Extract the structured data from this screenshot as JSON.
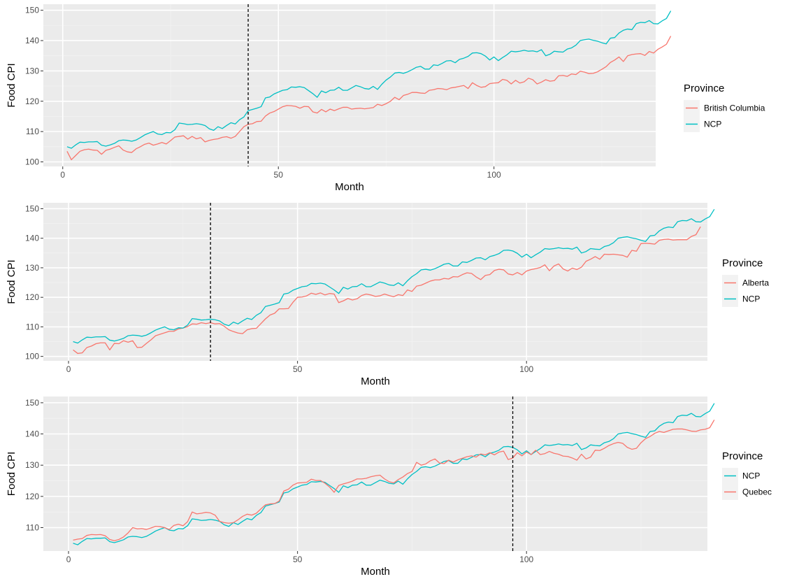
{
  "colors": {
    "panel_bg": "#EBEBEB",
    "grid_major": "#FFFFFF",
    "grid_minor": "#F2F2F2",
    "ncp": "#00BFC4",
    "province": "#F8766D",
    "vline": "#000000",
    "tick_text": "#4D4D4D"
  },
  "chart_data": [
    {
      "type": "line",
      "xlabel": "Month",
      "ylabel": "Food CPI",
      "x_ticks": [
        0,
        50,
        100
      ],
      "y_ticks": [
        100,
        110,
        120,
        130,
        140,
        150
      ],
      "xlim": [
        -4.5,
        137.5
      ],
      "ylim": [
        98.5,
        152
      ],
      "vline": 43,
      "legend_title": "Province",
      "legend_position": "right",
      "series": [
        {
          "name": "British Columbia",
          "color": "#F8766D",
          "start": 1,
          "values": [
            103.5,
            100.7,
            102.1,
            103.5,
            104.0,
            104.2,
            103.9,
            103.8,
            102.5,
            103.8,
            104.2,
            104.8,
            105.3,
            103.9,
            103.3,
            103.1,
            104.3,
            105.0,
            105.8,
            106.2,
            105.5,
            105.9,
            106.4,
            105.9,
            107.0,
            108.2,
            108.4,
            108.6,
            107.5,
            108.4,
            107.6,
            108.0,
            106.6,
            107.1,
            107.4,
            107.6,
            108.1,
            108.3,
            107.8,
            108.4,
            110.0,
            111.6,
            112.4,
            112.6,
            113.3,
            113.4,
            115.1,
            116.1,
            116.6,
            117.4,
            118.2,
            118.6,
            118.5,
            118.3,
            117.7,
            118.3,
            118.2,
            116.5,
            116.1,
            117.3,
            116.5,
            117.4,
            116.9,
            117.5,
            118.0,
            118.0,
            117.4,
            117.6,
            117.7,
            117.5,
            117.7,
            117.9,
            119.0,
            118.6,
            119.2,
            120.0,
            121.3,
            120.5,
            121.9,
            122.3,
            122.9,
            122.9,
            122.7,
            122.6,
            123.6,
            123.8,
            124.2,
            124.1,
            123.8,
            124.4,
            124.6,
            124.9,
            125.2,
            124.2,
            126.1,
            125.2,
            124.6,
            124.8,
            125.8,
            126.0,
            126.1,
            127.2,
            126.9,
            125.7,
            126.9,
            126.0,
            126.4,
            127.6,
            127.1,
            125.7,
            126.3,
            127.1,
            126.6,
            126.8,
            128.4,
            128.5,
            128.2,
            129.0,
            128.8,
            129.9,
            129.6,
            129.1,
            129.2,
            129.7,
            130.5,
            131.4,
            132.8,
            133.6,
            134.6,
            133.1,
            135.0,
            135.4,
            135.6,
            135.7,
            135.1,
            136.4,
            135.9,
            137.1,
            137.9,
            138.8,
            141.5
          ]
        },
        {
          "name": "NCP",
          "color": "#00BFC4",
          "start": 1,
          "values": [
            105.0,
            104.5,
            105.6,
            106.5,
            106.4,
            106.6,
            106.6,
            106.7,
            105.5,
            105.2,
            105.6,
            106.1,
            107.0,
            107.2,
            107.1,
            106.8,
            107.2,
            108.0,
            108.9,
            109.5,
            110.0,
            109.2,
            109.0,
            109.7,
            109.6,
            110.6,
            112.8,
            112.6,
            112.3,
            112.4,
            112.6,
            112.4,
            112.0,
            110.9,
            110.4,
            111.6,
            111.0,
            112.0,
            112.9,
            112.5,
            113.9,
            114.8,
            116.9,
            117.3,
            117.7,
            118.2,
            121.1,
            121.4,
            122.4,
            123.0,
            123.6,
            123.8,
            124.7,
            124.6,
            124.8,
            124.5,
            123.5,
            122.5,
            121.3,
            123.4,
            122.8,
            123.6,
            123.7,
            124.6,
            123.6,
            123.6,
            124.4,
            125.2,
            124.8,
            124.2,
            124.0,
            124.9,
            123.9,
            125.6,
            127.0,
            128.0,
            129.3,
            129.5,
            129.2,
            129.7,
            130.4,
            131.2,
            131.5,
            130.6,
            130.6,
            132.0,
            131.8,
            132.5,
            133.3,
            133.4,
            132.7,
            133.8,
            134.2,
            134.8,
            135.9,
            136.0,
            135.7,
            134.9,
            133.6,
            134.6,
            133.4,
            134.4,
            135.3,
            136.5,
            136.3,
            136.5,
            136.8,
            136.5,
            136.6,
            136.3,
            137.0,
            135.0,
            135.5,
            136.5,
            136.3,
            136.2,
            137.2,
            137.6,
            138.5,
            140.0,
            140.3,
            140.5,
            140.1,
            139.8,
            139.3,
            138.9,
            140.8,
            141.0,
            142.5,
            143.4,
            143.8,
            143.6,
            145.6,
            146.0,
            145.9,
            146.6,
            145.6,
            145.5,
            146.5,
            147.3,
            149.8
          ]
        }
      ]
    },
    {
      "type": "line",
      "xlabel": "Month",
      "ylabel": "Food CPI",
      "x_ticks": [
        0,
        50,
        100
      ],
      "y_ticks": [
        100,
        110,
        120,
        130,
        140,
        150
      ],
      "xlim": [
        -5.5,
        139.5
      ],
      "ylim": [
        98.5,
        152
      ],
      "vline": 31,
      "legend_title": "Province",
      "legend_position": "right",
      "series": [
        {
          "name": "Alberta",
          "color": "#F8766D",
          "start": 1,
          "values": [
            102.2,
            101.0,
            101.2,
            103.0,
            103.5,
            104.3,
            104.6,
            104.6,
            102.2,
            104.4,
            104.3,
            105.3,
            104.8,
            105.3,
            103.0,
            103.1,
            104.4,
            105.6,
            107.0,
            107.5,
            108.0,
            108.5,
            108.5,
            109.3,
            109.6,
            110.1,
            111.0,
            110.9,
            111.4,
            111.1,
            111.4,
            111.0,
            111.1,
            110.2,
            109.0,
            108.4,
            107.9,
            107.7,
            109.0,
            109.4,
            109.5,
            111.1,
            112.7,
            114.0,
            114.6,
            116.1,
            116.1,
            116.2,
            118.3,
            120.0,
            120.1,
            120.5,
            121.4,
            121.0,
            121.5,
            120.8,
            121.3,
            121.1,
            118.2,
            118.8,
            119.6,
            119.1,
            119.5,
            120.6,
            121.1,
            120.8,
            120.3,
            120.5,
            121.1,
            120.6,
            120.2,
            120.9,
            120.6,
            122.5,
            122.0,
            123.8,
            124.1,
            124.8,
            125.5,
            125.9,
            125.9,
            126.4,
            126.2,
            127.0,
            126.9,
            127.7,
            128.3,
            128.1,
            126.9,
            126.0,
            127.4,
            127.7,
            129.1,
            129.5,
            129.3,
            127.9,
            127.6,
            128.4,
            127.6,
            128.9,
            129.4,
            129.7,
            130.1,
            131.0,
            129.0,
            130.6,
            131.3,
            129.6,
            128.9,
            129.9,
            129.4,
            130.2,
            132.2,
            132.9,
            133.8,
            132.9,
            134.6,
            134.5,
            134.6,
            134.4,
            134.2,
            133.6,
            135.9,
            135.6,
            138.2,
            138.3,
            138.2,
            138.0,
            139.3,
            139.6,
            139.7,
            139.4,
            139.5,
            139.5,
            139.5,
            140.6,
            141.2,
            143.9
          ]
        },
        {
          "name": "NCP",
          "color": "#00BFC4",
          "start": 1,
          "values": [
            105.0,
            104.5,
            105.6,
            106.5,
            106.4,
            106.6,
            106.6,
            106.7,
            105.5,
            105.2,
            105.6,
            106.1,
            107.0,
            107.2,
            107.1,
            106.8,
            107.2,
            108.0,
            108.9,
            109.5,
            110.0,
            109.2,
            109.0,
            109.7,
            109.6,
            110.6,
            112.8,
            112.6,
            112.3,
            112.4,
            112.6,
            112.4,
            112.0,
            110.9,
            110.4,
            111.6,
            111.0,
            112.0,
            112.9,
            112.5,
            113.9,
            114.8,
            116.9,
            117.3,
            117.7,
            118.2,
            121.1,
            121.4,
            122.4,
            123.0,
            123.6,
            123.8,
            124.7,
            124.6,
            124.8,
            124.5,
            123.5,
            122.5,
            121.3,
            123.4,
            122.8,
            123.6,
            123.7,
            124.6,
            123.6,
            123.6,
            124.4,
            125.2,
            124.8,
            124.2,
            124.0,
            124.9,
            123.9,
            125.6,
            127.0,
            128.0,
            129.3,
            129.5,
            129.2,
            129.7,
            130.4,
            131.2,
            131.5,
            130.6,
            130.6,
            132.0,
            131.8,
            132.5,
            133.3,
            133.4,
            132.7,
            133.8,
            134.2,
            134.8,
            135.9,
            136.0,
            135.7,
            134.9,
            133.6,
            134.6,
            133.4,
            134.4,
            135.3,
            136.5,
            136.3,
            136.5,
            136.8,
            136.5,
            136.6,
            136.3,
            137.0,
            135.0,
            135.5,
            136.5,
            136.3,
            136.2,
            137.2,
            137.6,
            138.5,
            140.0,
            140.3,
            140.5,
            140.1,
            139.8,
            139.3,
            138.9,
            140.8,
            141.0,
            142.5,
            143.4,
            143.8,
            143.6,
            145.6,
            146.0,
            145.9,
            146.6,
            145.6,
            145.5,
            146.5,
            147.3,
            149.8
          ]
        }
      ]
    },
    {
      "type": "line",
      "xlabel": "Month",
      "ylabel": "Food CPI",
      "x_ticks": [
        0,
        50,
        100
      ],
      "y_ticks": [
        110,
        120,
        130,
        140,
        150
      ],
      "xlim": [
        -5.5,
        139.5
      ],
      "ylim": [
        102.5,
        152
      ],
      "vline": 97,
      "legend_title": "Province",
      "legend_position": "right",
      "series": [
        {
          "name": "NCP",
          "color": "#00BFC4",
          "start": 1,
          "values": [
            105.0,
            104.5,
            105.6,
            106.5,
            106.4,
            106.6,
            106.6,
            106.7,
            105.5,
            105.2,
            105.6,
            106.1,
            107.0,
            107.2,
            107.1,
            106.8,
            107.2,
            108.0,
            108.9,
            109.5,
            110.0,
            109.2,
            109.0,
            109.7,
            109.6,
            110.6,
            112.8,
            112.6,
            112.3,
            112.4,
            112.6,
            112.4,
            112.0,
            110.9,
            110.4,
            111.6,
            111.0,
            112.0,
            112.9,
            112.5,
            113.9,
            114.8,
            116.9,
            117.3,
            117.7,
            118.2,
            121.1,
            121.4,
            122.4,
            123.0,
            123.6,
            123.8,
            124.7,
            124.6,
            124.8,
            124.5,
            123.5,
            122.5,
            121.3,
            123.4,
            122.8,
            123.6,
            123.7,
            124.6,
            123.6,
            123.6,
            124.4,
            125.2,
            124.8,
            124.2,
            124.0,
            124.9,
            123.9,
            125.6,
            127.0,
            128.0,
            129.3,
            129.5,
            129.2,
            129.7,
            130.4,
            131.2,
            131.5,
            130.6,
            130.6,
            132.0,
            131.8,
            132.5,
            133.3,
            133.4,
            132.7,
            133.8,
            134.2,
            134.8,
            135.9,
            136.0,
            135.7,
            134.9,
            133.6,
            134.6,
            133.4,
            134.4,
            135.3,
            136.5,
            136.3,
            136.5,
            136.8,
            136.5,
            136.6,
            136.3,
            137.0,
            135.0,
            135.5,
            136.5,
            136.3,
            136.2,
            137.2,
            137.6,
            138.5,
            140.0,
            140.3,
            140.5,
            140.1,
            139.8,
            139.3,
            138.9,
            140.8,
            141.0,
            142.5,
            143.4,
            143.8,
            143.6,
            145.6,
            146.0,
            145.9,
            146.6,
            145.6,
            145.5,
            146.5,
            147.3,
            149.8
          ]
        },
        {
          "name": "Quebec",
          "color": "#F8766D",
          "start": 1,
          "values": [
            106.0,
            106.3,
            106.5,
            107.5,
            107.8,
            107.7,
            107.8,
            107.4,
            106.2,
            105.8,
            106.2,
            107.0,
            108.3,
            110.0,
            109.6,
            109.7,
            109.4,
            109.9,
            110.4,
            110.3,
            110.0,
            109.4,
            110.7,
            111.1,
            110.6,
            111.9,
            115.0,
            114.4,
            114.6,
            114.9,
            114.7,
            114.0,
            112.0,
            111.6,
            111.4,
            111.6,
            112.5,
            113.6,
            114.3,
            114.0,
            114.6,
            116.0,
            117.3,
            117.6,
            117.7,
            118.5,
            121.7,
            122.3,
            123.6,
            124.3,
            124.4,
            124.5,
            125.5,
            125.1,
            125.1,
            124.2,
            123.0,
            121.3,
            123.5,
            124.0,
            124.4,
            124.9,
            125.6,
            125.6,
            125.8,
            126.3,
            126.6,
            126.8,
            125.6,
            124.7,
            124.3,
            125.4,
            126.2,
            127.3,
            128.0,
            130.9,
            130.0,
            130.4,
            131.4,
            132.0,
            130.7,
            130.5,
            131.6,
            131.0,
            131.7,
            132.2,
            132.7,
            133.0,
            132.6,
            133.6,
            133.3,
            134.0,
            133.3,
            134.2,
            134.5,
            131.8,
            132.3,
            134.0,
            133.0,
            134.2,
            133.4,
            134.8,
            133.4,
            133.7,
            134.4,
            133.8,
            133.5,
            132.9,
            132.8,
            132.3,
            131.6,
            133.5,
            132.0,
            132.6,
            134.8,
            134.7,
            135.4,
            136.3,
            136.9,
            137.3,
            137.0,
            135.7,
            135.1,
            135.4,
            137.2,
            138.5,
            139.2,
            140.2,
            140.8,
            140.5,
            141.0,
            141.5,
            141.6,
            141.6,
            141.3,
            140.9,
            140.8,
            141.3,
            141.5,
            142.0,
            144.5
          ]
        }
      ]
    }
  ]
}
